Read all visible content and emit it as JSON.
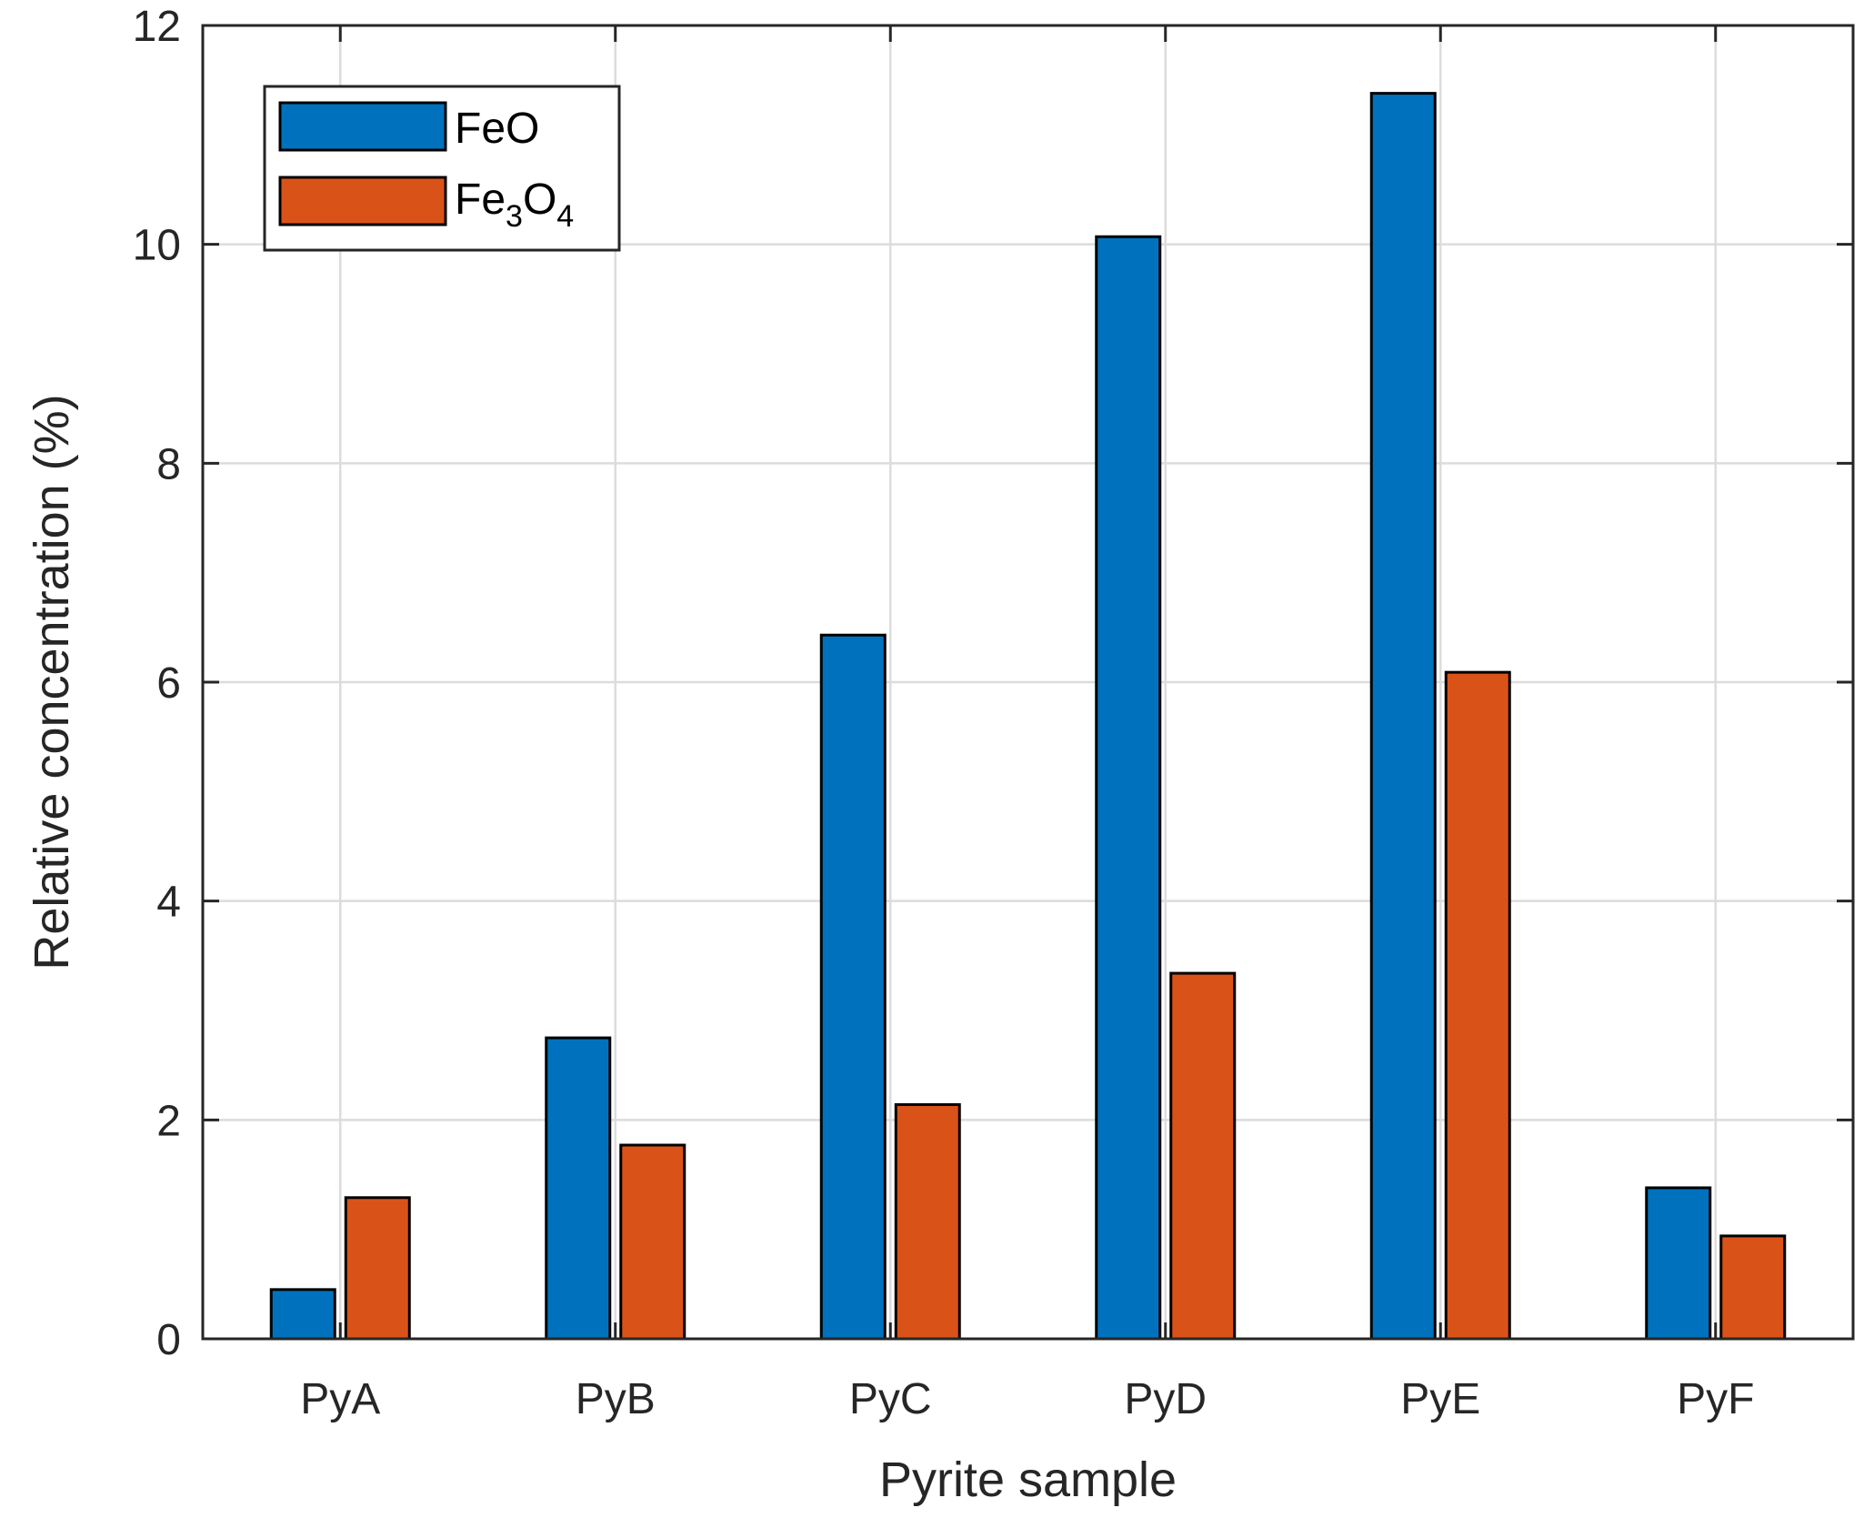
{
  "chart_data": {
    "type": "bar",
    "title": "",
    "xlabel": "Pyrite sample",
    "ylabel": "Relative concentration (%)",
    "categories": [
      "PyA",
      "PyB",
      "PyC",
      "PyD",
      "PyE",
      "PyF"
    ],
    "series": [
      {
        "name": "FeO",
        "values": [
          0.45,
          2.75,
          6.43,
          10.07,
          11.38,
          1.38
        ],
        "color": "#0072bd"
      },
      {
        "name": "Fe3O4",
        "values": [
          1.29,
          1.77,
          2.14,
          3.34,
          6.09,
          0.94
        ],
        "color": "#d95319"
      }
    ],
    "legend": {
      "position": "top-left",
      "entries": [
        {
          "base": "FeO",
          "sub1": "",
          "mid": "",
          "sub2": ""
        },
        {
          "base": "Fe",
          "sub1": "3",
          "mid": "O",
          "sub2": "4"
        }
      ]
    },
    "ylim": [
      0,
      12
    ],
    "yticks": [
      "0",
      "2",
      "4",
      "6",
      "8",
      "10",
      "12"
    ],
    "grid": true
  }
}
